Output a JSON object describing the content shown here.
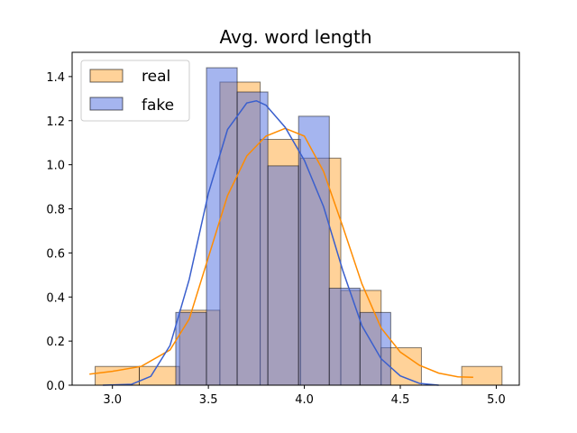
{
  "chart_data": {
    "type": "histogram",
    "title": "Avg. word length",
    "xlabel": "",
    "ylabel": "",
    "xlim": [
      2.79,
      5.12
    ],
    "ylim": [
      0,
      1.51
    ],
    "x_ticks": [
      "3.0",
      "3.5",
      "4.0",
      "4.5",
      "5.0"
    ],
    "y_ticks": [
      "0.0",
      "0.2",
      "0.4",
      "0.6",
      "0.8",
      "1.0",
      "1.2",
      "1.4"
    ],
    "legend_position": "top-left",
    "grid": false,
    "series": [
      {
        "name": "real",
        "color": "#ffa533",
        "kde_color": "#ff8c00",
        "bins": [
          {
            "x0": 2.91,
            "x1": 3.14,
            "value": 0.085
          },
          {
            "x0": 3.14,
            "x1": 3.35,
            "value": 0.085
          },
          {
            "x0": 3.35,
            "x1": 3.56,
            "value": 0.34
          },
          {
            "x0": 3.56,
            "x1": 3.77,
            "value": 1.375
          },
          {
            "x0": 3.77,
            "x1": 3.98,
            "value": 1.115
          },
          {
            "x0": 3.98,
            "x1": 4.19,
            "value": 1.03
          },
          {
            "x0": 4.19,
            "x1": 4.4,
            "value": 0.43
          },
          {
            "x0": 4.4,
            "x1": 4.61,
            "value": 0.17
          },
          {
            "x0": 4.61,
            "x1": 4.82,
            "value": 0
          },
          {
            "x0": 4.82,
            "x1": 5.03,
            "value": 0.085
          }
        ],
        "kde": [
          [
            2.88,
            0.05
          ],
          [
            3.0,
            0.063
          ],
          [
            3.15,
            0.085
          ],
          [
            3.3,
            0.16
          ],
          [
            3.4,
            0.3
          ],
          [
            3.5,
            0.58
          ],
          [
            3.6,
            0.86
          ],
          [
            3.7,
            1.04
          ],
          [
            3.8,
            1.13
          ],
          [
            3.9,
            1.165
          ],
          [
            4.0,
            1.13
          ],
          [
            4.1,
            0.97
          ],
          [
            4.2,
            0.72
          ],
          [
            4.3,
            0.46
          ],
          [
            4.4,
            0.26
          ],
          [
            4.5,
            0.15
          ],
          [
            4.6,
            0.09
          ],
          [
            4.7,
            0.055
          ],
          [
            4.8,
            0.038
          ],
          [
            4.88,
            0.036
          ]
        ]
      },
      {
        "name": "fake",
        "color": "#4b6be0",
        "kde_color": "#3a5fcd",
        "bins": [
          {
            "x0": 3.33,
            "x1": 3.49,
            "value": 0.33
          },
          {
            "x0": 3.49,
            "x1": 3.65,
            "value": 1.44
          },
          {
            "x0": 3.65,
            "x1": 3.81,
            "value": 1.33
          },
          {
            "x0": 3.81,
            "x1": 3.97,
            "value": 0.995
          },
          {
            "x0": 3.97,
            "x1": 4.13,
            "value": 1.22
          },
          {
            "x0": 4.13,
            "x1": 4.29,
            "value": 0.44
          },
          {
            "x0": 4.29,
            "x1": 4.45,
            "value": 0.33
          }
        ],
        "kde": [
          [
            2.95,
            0.0
          ],
          [
            3.1,
            0.004
          ],
          [
            3.2,
            0.04
          ],
          [
            3.3,
            0.18
          ],
          [
            3.4,
            0.48
          ],
          [
            3.5,
            0.87
          ],
          [
            3.6,
            1.16
          ],
          [
            3.7,
            1.28
          ],
          [
            3.75,
            1.29
          ],
          [
            3.8,
            1.27
          ],
          [
            3.9,
            1.17
          ],
          [
            4.0,
            1.02
          ],
          [
            4.1,
            0.81
          ],
          [
            4.2,
            0.52
          ],
          [
            4.3,
            0.27
          ],
          [
            4.4,
            0.12
          ],
          [
            4.5,
            0.042
          ],
          [
            4.6,
            0.008
          ],
          [
            4.7,
            0.0
          ]
        ]
      }
    ]
  }
}
